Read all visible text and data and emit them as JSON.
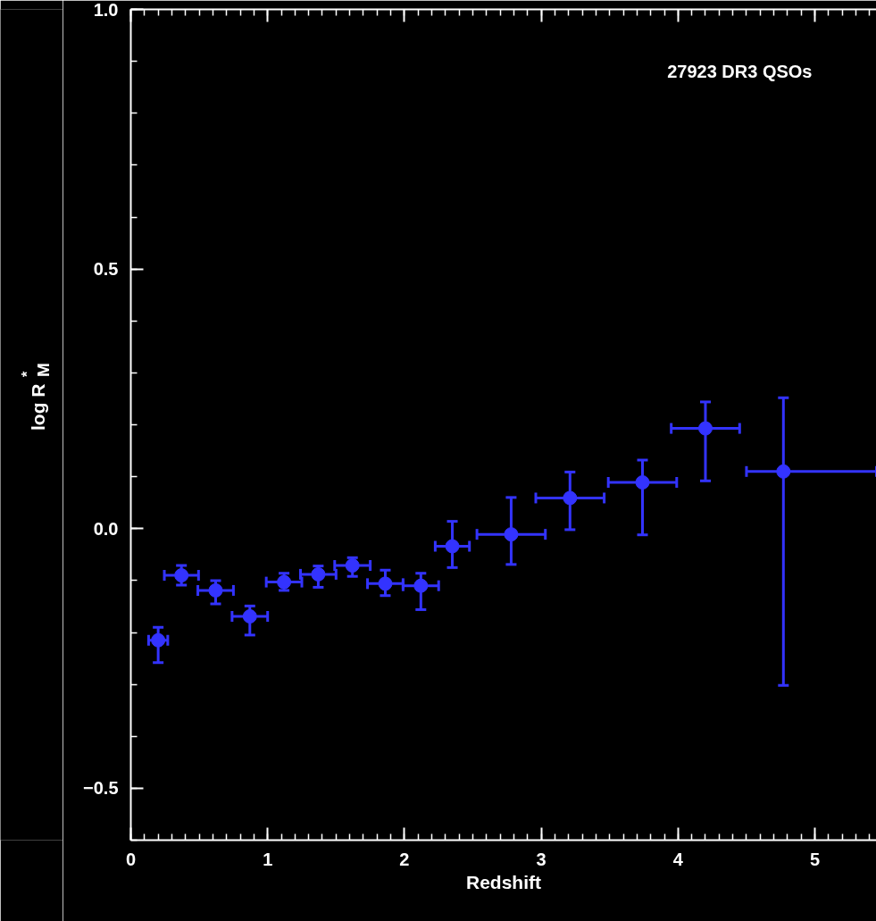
{
  "chart_data": {
    "type": "scatter",
    "xlabel": "Redshift",
    "ylabel": "log R$^{*}$$_{M}$",
    "annotations": [
      "27923 DR3 QSOs"
    ],
    "x": [
      0.2,
      0.37,
      0.62,
      0.87,
      1.12,
      1.37,
      1.62,
      1.86,
      2.12,
      2.35,
      2.78,
      3.21,
      3.74,
      4.2,
      4.77
    ],
    "series": [
      {
        "color": "#3333ff",
        "values": [
          -0.215,
          -0.09,
          -0.119,
          -0.169,
          -0.103,
          -0.088,
          -0.071,
          -0.106,
          -0.11,
          -0.034,
          -0.011,
          0.059,
          0.089,
          0.193,
          0.11
        ],
        "errors": [
          [
            -0.258,
            -0.19
          ],
          [
            -0.109,
            -0.071
          ],
          [
            -0.145,
            -0.1
          ],
          [
            -0.205,
            -0.149
          ],
          [
            -0.119,
            -0.086
          ],
          [
            -0.113,
            -0.072
          ],
          [
            -0.092,
            -0.056
          ],
          [
            -0.129,
            -0.08
          ],
          [
            -0.156,
            -0.086
          ],
          [
            -0.075,
            0.014
          ],
          [
            -0.069,
            0.06
          ],
          [
            -0.002,
            0.109
          ],
          [
            -0.012,
            0.132
          ],
          [
            0.092,
            0.244
          ],
          [
            -0.302,
            0.252
          ]
        ],
        "xerrors": [
          0.07,
          0.125,
          0.13,
          0.13,
          0.13,
          0.13,
          0.13,
          0.13,
          0.13,
          0.125,
          0.25,
          0.25,
          0.25,
          0.25,
          [
            4.5,
            5.45
          ]
        ]
      }
    ],
    "xlim": [
      0,
      5.45
    ],
    "ylim": [
      -0.6,
      1.0
    ],
    "xticks": [
      0,
      1,
      2,
      3,
      4,
      5
    ],
    "yticks": [
      {
        "value": 1.0,
        "label": "1.0"
      },
      0.5,
      {
        "value": 0.0,
        "label": "0.0"
      },
      -0.5
    ],
    "marker": "circle",
    "grid": false
  }
}
